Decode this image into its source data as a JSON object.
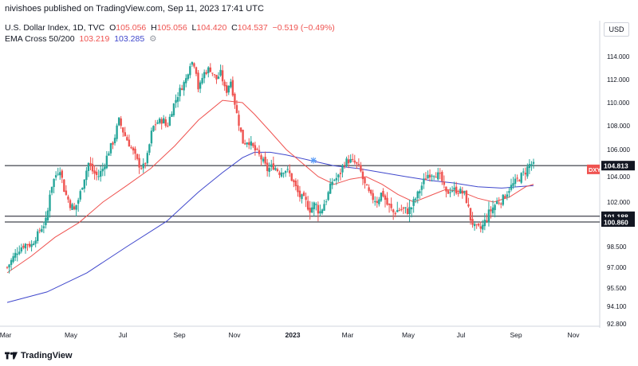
{
  "header": {
    "published": "nivishoes published on TradingView.com, Sep 11, 2023 17:41 UTC",
    "symbol_desc": "U.S. Dollar Index, 1D, TVC",
    "ohlc": {
      "o_label": "O",
      "o": "105.056",
      "h_label": "H",
      "h": "105.056",
      "l_label": "L",
      "l": "104.420",
      "c_label": "C",
      "c": "104.537",
      "change": "−0.519 (−0.49%)"
    },
    "indicator": "EMA Cross 50/200",
    "ema50_value": "103.219",
    "ema200_value": "103.285"
  },
  "currency_button": "USD",
  "footer": {
    "brand": "TradingView",
    "logo_icon": "tradingview-logo-icon"
  },
  "colors": {
    "up": "#26a69a",
    "down": "#ef5350",
    "ema50": "#ef5350",
    "ema200": "#3f47cc",
    "price_line": "#131722",
    "symbol_tag": "#ef5350"
  },
  "chart_data": {
    "type": "candlestick",
    "symbol_tag": "DXY",
    "y_ticks": [
      "114.000",
      "112.000",
      "110.000",
      "108.000",
      "106.000",
      "104.000",
      "102.000",
      "98.500",
      "97.000",
      "95.500",
      "94.100",
      "92.800"
    ],
    "x_ticks": [
      "Mar",
      "May",
      "Jul",
      "Sep",
      "Nov",
      "2023",
      "Mar",
      "May",
      "Jul",
      "Sep",
      "Nov"
    ],
    "ylim": [
      92.8,
      115.5
    ],
    "horizontal_levels": [
      {
        "value": 104.813,
        "label": "104.813"
      },
      {
        "value": 101.188,
        "label": "101.188"
      },
      {
        "value": 100.86,
        "label": "100.860"
      }
    ],
    "close_path": [
      [
        0,
        97.0
      ],
      [
        1.4,
        98.3
      ],
      [
        2.4,
        98.8
      ],
      [
        3.0,
        98.6
      ],
      [
        4.2,
        100.2
      ],
      [
        5.0,
        101.0
      ],
      [
        5.4,
        103.0
      ],
      [
        6.0,
        104.0
      ],
      [
        6.6,
        104.7
      ],
      [
        7.2,
        102.8
      ],
      [
        7.8,
        102.0
      ],
      [
        8.4,
        101.5
      ],
      [
        9.0,
        102.3
      ],
      [
        9.6,
        103.8
      ],
      [
        10.2,
        105.0
      ],
      [
        10.8,
        104.3
      ],
      [
        11.4,
        104.0
      ],
      [
        12.0,
        104.6
      ],
      [
        12.8,
        106.0
      ],
      [
        13.4,
        106.8
      ],
      [
        14.0,
        108.5
      ],
      [
        14.6,
        107.4
      ],
      [
        15.2,
        106.6
      ],
      [
        15.8,
        105.8
      ],
      [
        16.4,
        105.0
      ],
      [
        17.0,
        104.6
      ],
      [
        17.6,
        105.5
      ],
      [
        18.2,
        107.8
      ],
      [
        18.8,
        108.3
      ],
      [
        19.6,
        108.5
      ],
      [
        20.0,
        107.8
      ],
      [
        20.8,
        109.7
      ],
      [
        21.6,
        111.0
      ],
      [
        22.4,
        112.0
      ],
      [
        23.0,
        113.6
      ],
      [
        23.6,
        113.3
      ],
      [
        24.0,
        111.0
      ],
      [
        24.6,
        112.5
      ],
      [
        25.4,
        113.0
      ],
      [
        26.2,
        112.0
      ],
      [
        26.8,
        112.6
      ],
      [
        27.4,
        110.8
      ],
      [
        28.0,
        112.0
      ],
      [
        28.8,
        109.0
      ],
      [
        29.6,
        106.5
      ],
      [
        30.2,
        106.8
      ],
      [
        31.0,
        106.0
      ],
      [
        31.8,
        105.4
      ],
      [
        32.6,
        104.5
      ],
      [
        33.4,
        104.8
      ],
      [
        34.2,
        104.3
      ],
      [
        34.8,
        104.6
      ],
      [
        35.4,
        104.2
      ],
      [
        36.0,
        103.4
      ],
      [
        36.6,
        102.5
      ],
      [
        37.2,
        102.2
      ],
      [
        38.0,
        101.6
      ],
      [
        38.6,
        101.9
      ],
      [
        39.2,
        101.4
      ],
      [
        40.0,
        102.2
      ],
      [
        40.8,
        103.7
      ],
      [
        41.6,
        104.0
      ],
      [
        42.2,
        105.0
      ],
      [
        42.8,
        105.2
      ],
      [
        43.6,
        105.0
      ],
      [
        44.2,
        104.6
      ],
      [
        44.8,
        103.4
      ],
      [
        45.6,
        102.4
      ],
      [
        46.4,
        102.1
      ],
      [
        47.0,
        102.8
      ],
      [
        47.6,
        101.9
      ],
      [
        48.4,
        101.4
      ],
      [
        49.2,
        101.6
      ],
      [
        50.0,
        101.5
      ],
      [
        50.6,
        101.6
      ],
      [
        51.4,
        102.5
      ],
      [
        52.2,
        103.6
      ],
      [
        52.8,
        104.2
      ],
      [
        53.6,
        104.3
      ],
      [
        54.4,
        103.9
      ],
      [
        55.0,
        102.6
      ],
      [
        55.6,
        103.0
      ],
      [
        56.6,
        102.9
      ],
      [
        57.4,
        102.6
      ],
      [
        58.0,
        101.2
      ],
      [
        58.6,
        100.4
      ],
      [
        59.4,
        100.2
      ],
      [
        60.0,
        101.0
      ],
      [
        60.6,
        101.5
      ],
      [
        61.4,
        102.0
      ],
      [
        62.2,
        102.3
      ],
      [
        63.0,
        103.1
      ],
      [
        63.6,
        103.5
      ],
      [
        64.4,
        104.0
      ],
      [
        65.0,
        104.4
      ],
      [
        65.6,
        105.0
      ],
      [
        66.0,
        104.8
      ]
    ],
    "ema50_path": [
      [
        0,
        96.6
      ],
      [
        3.0,
        97.8
      ],
      [
        6.0,
        99.4
      ],
      [
        9.0,
        100.8
      ],
      [
        12.0,
        102.0
      ],
      [
        15.0,
        103.3
      ],
      [
        18.0,
        104.6
      ],
      [
        21.0,
        106.3
      ],
      [
        24.0,
        108.5
      ],
      [
        27.0,
        110.2
      ],
      [
        29.5,
        110.0
      ],
      [
        31.0,
        109.0
      ],
      [
        33.0,
        107.5
      ],
      [
        35.0,
        106.0
      ],
      [
        37.0,
        105.0
      ],
      [
        39.0,
        104.0
      ],
      [
        41.0,
        103.4
      ],
      [
        43.0,
        103.8
      ],
      [
        45.0,
        104.0
      ],
      [
        47.0,
        103.4
      ],
      [
        49.0,
        102.6
      ],
      [
        51.0,
        102.0
      ],
      [
        53.0,
        102.5
      ],
      [
        55.0,
        103.0
      ],
      [
        57.0,
        102.8
      ],
      [
        59.0,
        102.3
      ],
      [
        61.0,
        102.0
      ],
      [
        63.0,
        102.4
      ],
      [
        65.0,
        103.2
      ],
      [
        66.0,
        103.4
      ]
    ],
    "ema200_path": [
      [
        0,
        94.4
      ],
      [
        5.0,
        95.2
      ],
      [
        10.0,
        96.6
      ],
      [
        15.0,
        98.5
      ],
      [
        20.0,
        100.9
      ],
      [
        24.0,
        102.8
      ],
      [
        27.0,
        104.3
      ],
      [
        29.5,
        105.4
      ],
      [
        31.0,
        105.8
      ],
      [
        33.0,
        105.8
      ],
      [
        35.0,
        105.6
      ],
      [
        38.0,
        105.2
      ],
      [
        41.0,
        104.8
      ],
      [
        44.0,
        104.6
      ],
      [
        47.0,
        104.3
      ],
      [
        50.0,
        104.0
      ],
      [
        53.0,
        103.7
      ],
      [
        56.0,
        103.5
      ],
      [
        59.0,
        103.2
      ],
      [
        62.0,
        103.1
      ],
      [
        64.0,
        103.2
      ],
      [
        66.0,
        103.3
      ]
    ],
    "cross_marker": {
      "x": 38.4,
      "y": 105.2
    },
    "grid": false,
    "legend": "top-left"
  }
}
